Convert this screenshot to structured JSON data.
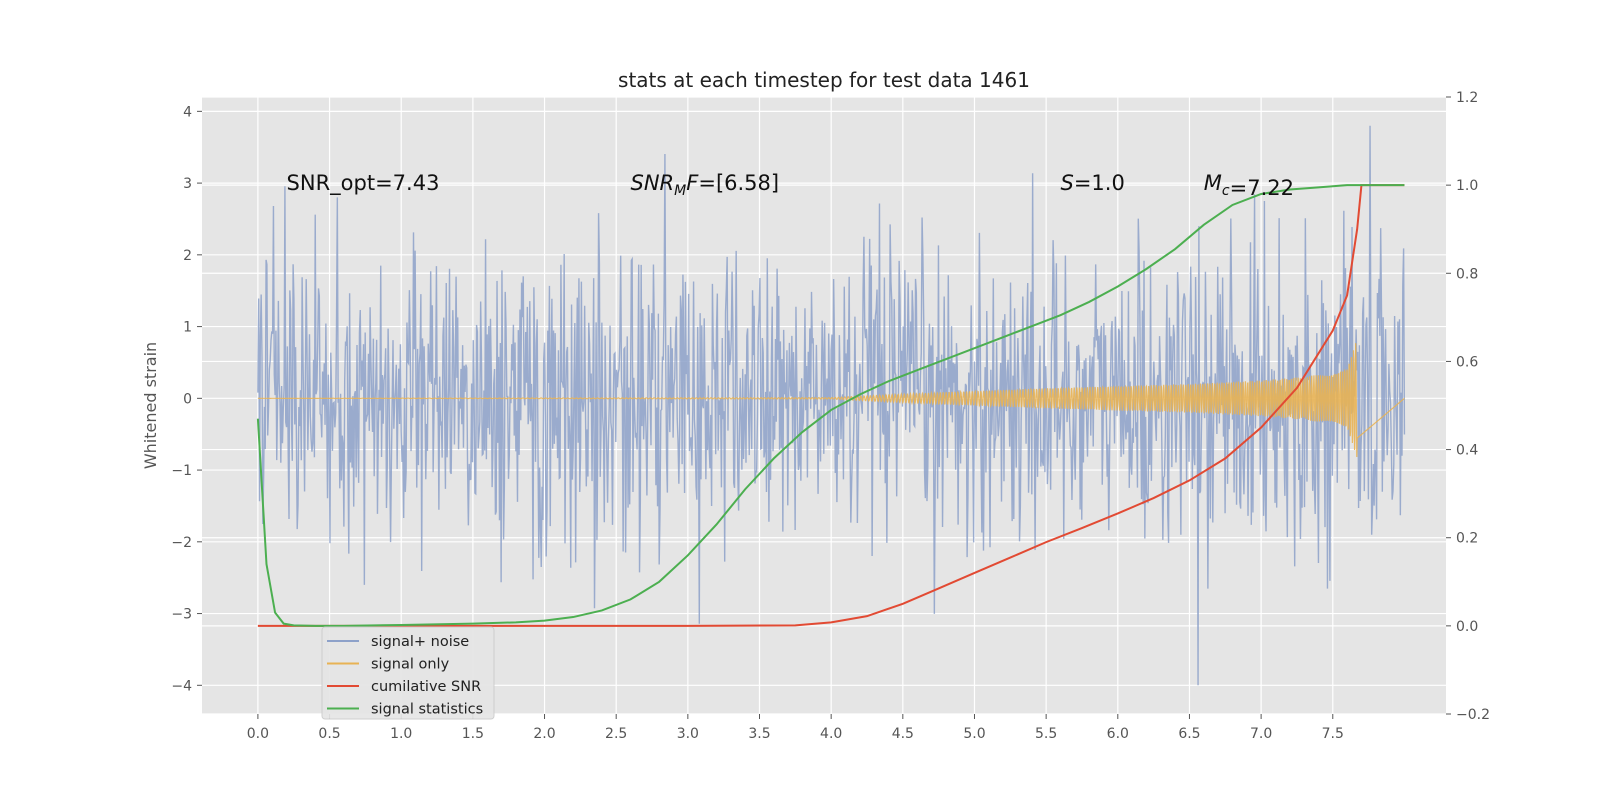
{
  "chart_data": {
    "type": "line",
    "title": "stats at each timestep for test data 1461",
    "xlabel": "",
    "ylabel": "Whitened strain",
    "y2label": "",
    "xlim": [
      -0.39,
      8.29
    ],
    "ylim": [
      -4.4,
      4.2
    ],
    "y2lim": [
      -0.2,
      1.2
    ],
    "xticks": [
      0.0,
      0.5,
      1.0,
      1.5,
      2.0,
      2.5,
      3.0,
      3.5,
      4.0,
      4.5,
      5.0,
      5.5,
      6.0,
      6.5,
      7.0,
      7.5
    ],
    "yticks": [
      -4,
      -3,
      -2,
      -1,
      0,
      1,
      2,
      3,
      4
    ],
    "y2ticks": [
      -0.2,
      0.0,
      0.2,
      0.4,
      0.6,
      0.8,
      1.0,
      1.2
    ],
    "grid": true,
    "legend_position": "lower-left",
    "annotations": [
      {
        "text": "SNR_opt=7.43",
        "x": 0.2,
        "y": 3.0
      },
      {
        "text": "SNR_MF=[6.58]",
        "x": 2.6,
        "y": 3.0
      },
      {
        "text": "S=1.0",
        "x": 5.6,
        "y": 3.0
      },
      {
        "text": "M_c=7.22",
        "x": 6.6,
        "y": 3.0
      }
    ],
    "series": [
      {
        "name": "signal+ noise",
        "color": "#8da1c9",
        "axis": "left",
        "x_range": [
          0.0,
          8.0
        ],
        "noise_std": 1.0,
        "approx_extremes": {
          "max": 3.8,
          "min": -4.0
        }
      },
      {
        "name": "signal only",
        "color": "#e8b254",
        "axis": "left",
        "x_range": [
          0.0,
          7.67
        ],
        "envelope": {
          "x": [
            0.0,
            4.0,
            4.5,
            5.0,
            5.5,
            6.0,
            6.5,
            7.0,
            7.3,
            7.5,
            7.6,
            7.67
          ],
          "amplitude": [
            0.0,
            0.01,
            0.06,
            0.1,
            0.14,
            0.17,
            0.2,
            0.25,
            0.3,
            0.36,
            0.45,
            0.85
          ]
        }
      },
      {
        "name": "cumilative SNR",
        "color": "#e24a33",
        "axis": "right",
        "x": [
          0.0,
          1.0,
          2.0,
          3.0,
          3.75,
          4.0,
          4.25,
          4.5,
          4.75,
          5.0,
          5.25,
          5.5,
          5.75,
          6.0,
          6.25,
          6.5,
          6.75,
          7.0,
          7.25,
          7.5,
          7.6,
          7.67,
          7.7,
          8.0
        ],
        "y": [
          0.0,
          0.0,
          0.0,
          0.0,
          0.001,
          0.008,
          0.022,
          0.05,
          0.085,
          0.12,
          0.155,
          0.19,
          0.222,
          0.255,
          0.29,
          0.33,
          0.38,
          0.45,
          0.54,
          0.67,
          0.75,
          0.9,
          1.0,
          1.0
        ]
      },
      {
        "name": "signal statistics",
        "color": "#4caf50",
        "axis": "right",
        "x": [
          0.0,
          0.06,
          0.12,
          0.18,
          0.25,
          0.4,
          0.6,
          1.0,
          1.5,
          1.8,
          2.0,
          2.2,
          2.4,
          2.6,
          2.8,
          3.0,
          3.2,
          3.4,
          3.6,
          3.8,
          4.0,
          4.2,
          4.4,
          4.6,
          4.8,
          5.0,
          5.2,
          5.4,
          5.6,
          5.8,
          6.0,
          6.2,
          6.4,
          6.6,
          6.8,
          7.0,
          7.2,
          7.4,
          7.6,
          8.0
        ],
        "y": [
          0.47,
          0.14,
          0.03,
          0.005,
          0.001,
          0.0,
          0.0,
          0.002,
          0.005,
          0.008,
          0.012,
          0.02,
          0.035,
          0.06,
          0.1,
          0.16,
          0.23,
          0.31,
          0.38,
          0.44,
          0.49,
          0.525,
          0.555,
          0.58,
          0.605,
          0.63,
          0.655,
          0.68,
          0.705,
          0.735,
          0.77,
          0.81,
          0.855,
          0.91,
          0.955,
          0.98,
          0.99,
          0.995,
          1.0,
          1.0
        ]
      }
    ]
  }
}
